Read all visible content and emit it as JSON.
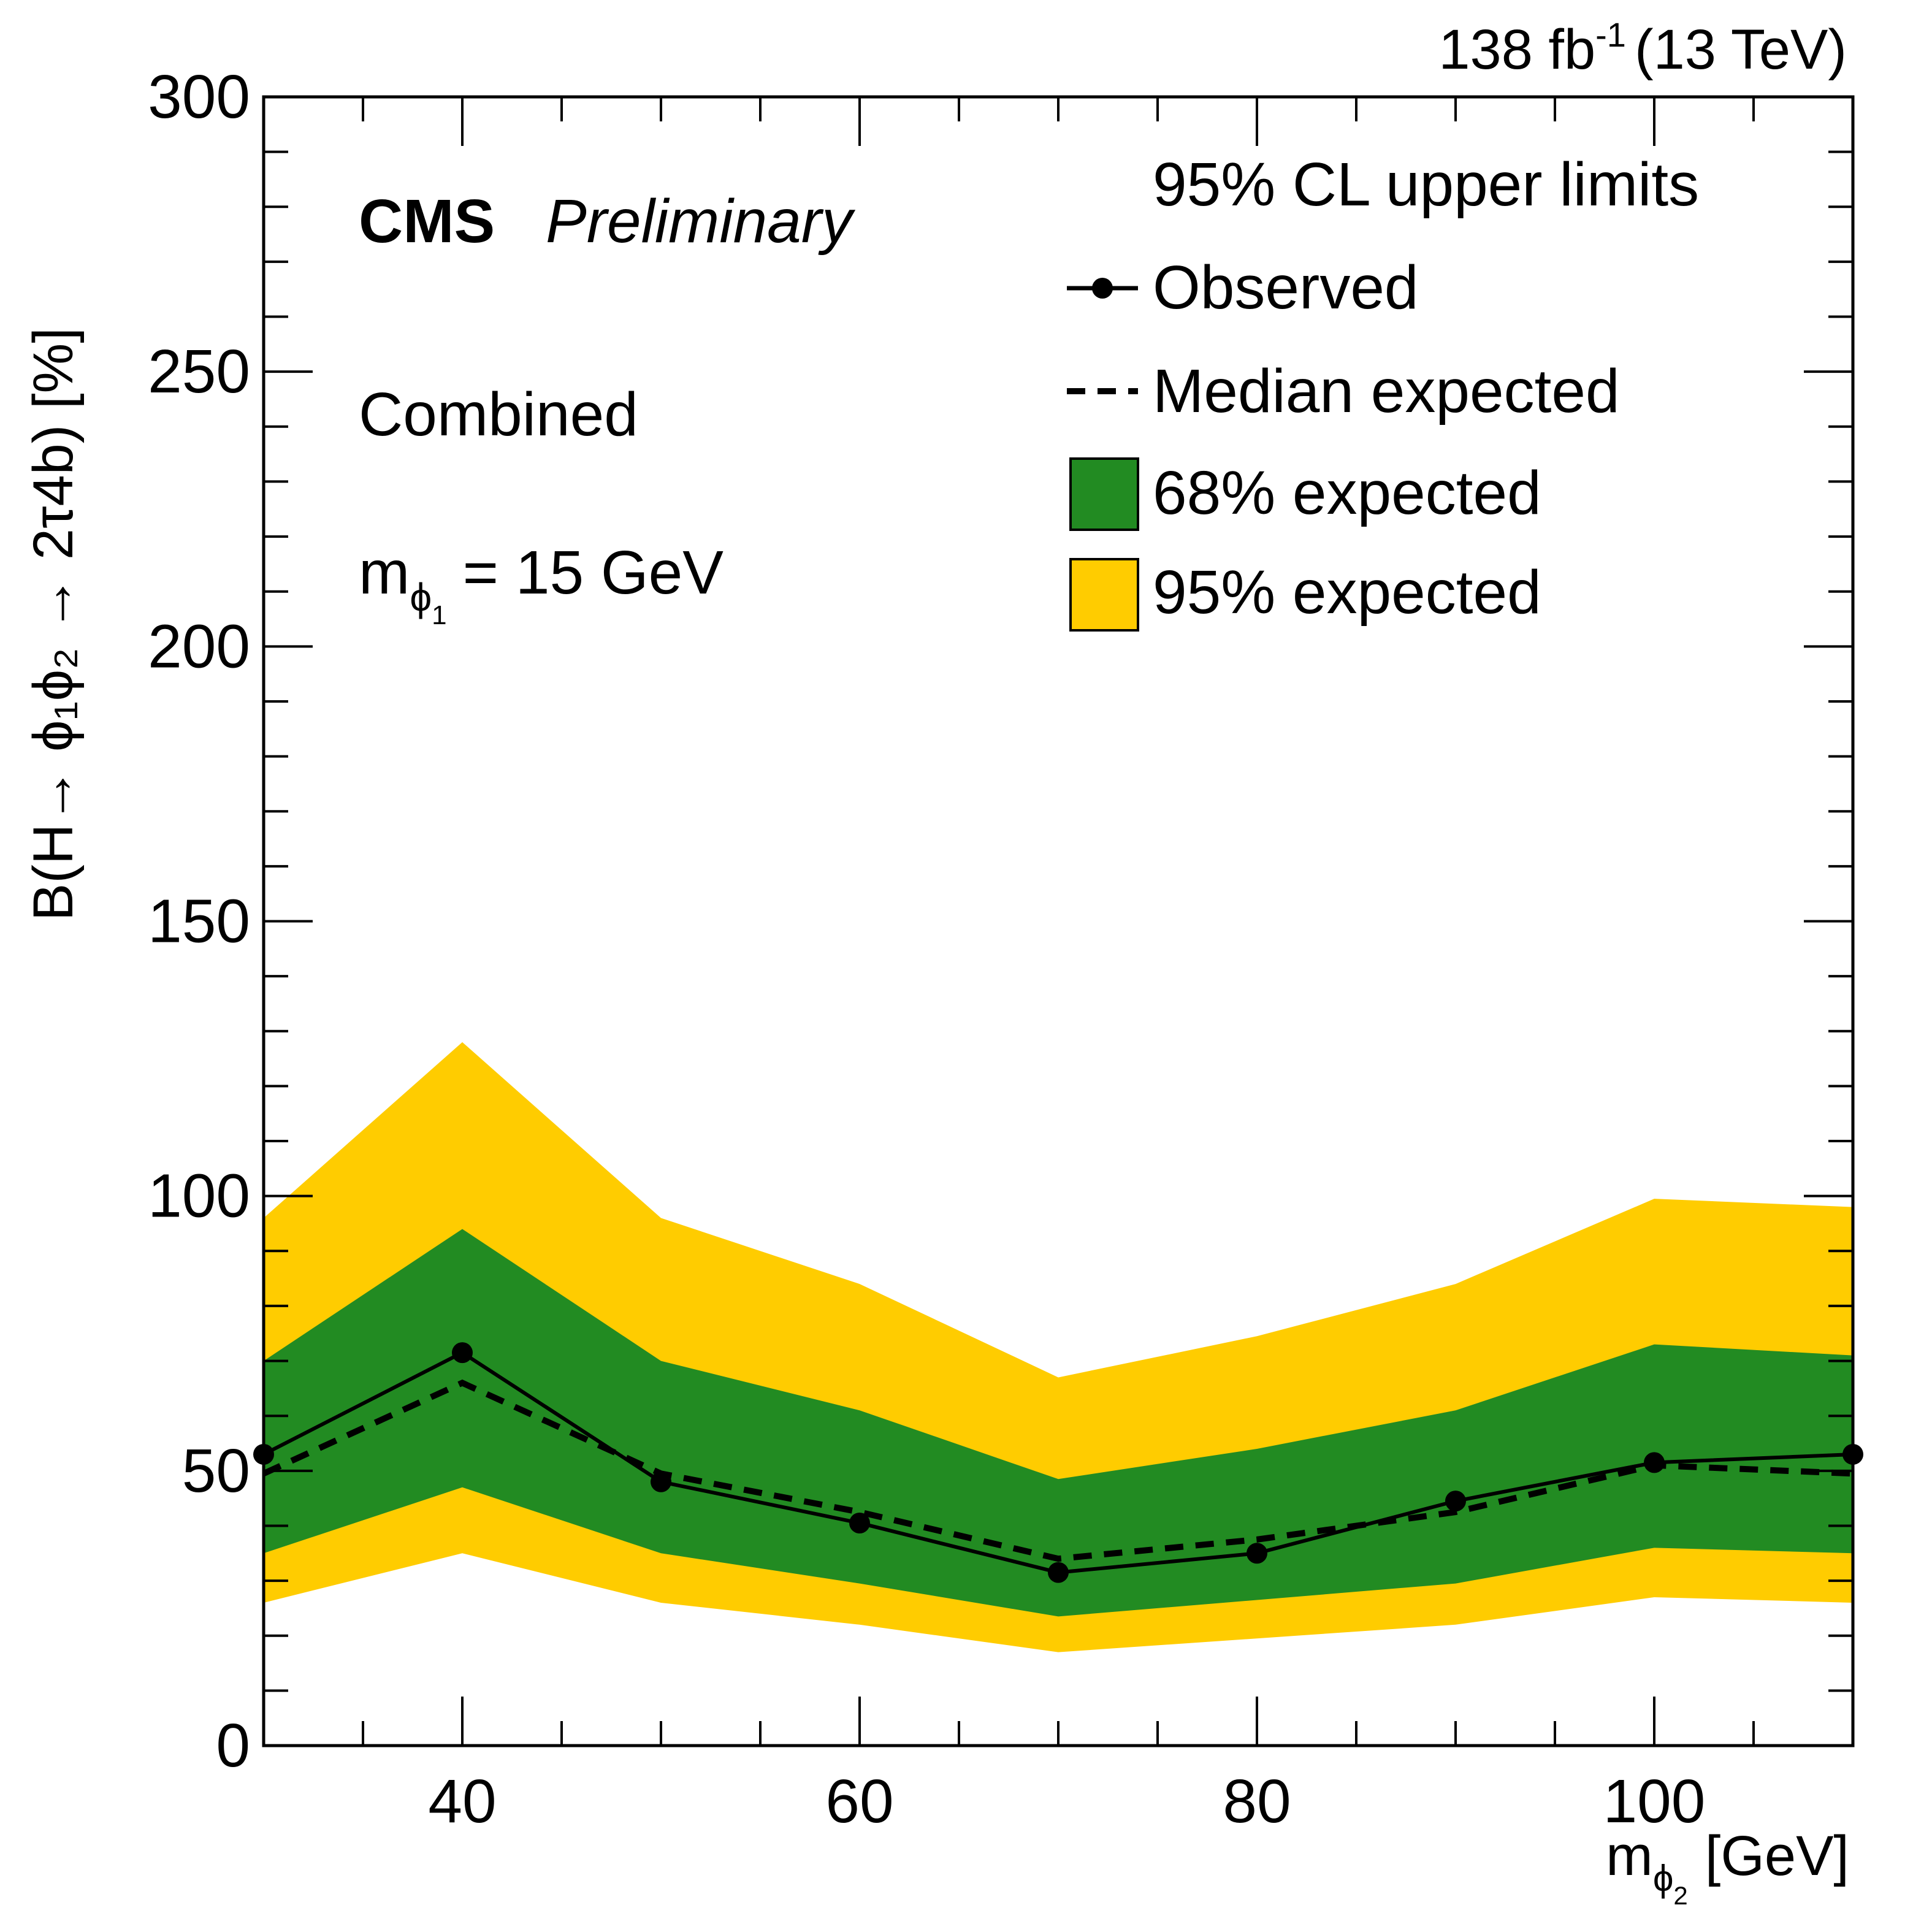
{
  "chart_data": {
    "type": "line",
    "title": "",
    "lumi_label": "138 fb",
    "lumi_exponent": "-1",
    "energy_label": "(13 TeV)",
    "experiment": "CMS",
    "status": "Preliminary",
    "channel": "Combined",
    "mass_point": {
      "prefix": "m",
      "sub": "ϕ",
      "subsub": "1",
      "rest": "= 15 GeV"
    },
    "xlabel": {
      "prefix": "m",
      "sub": "ϕ",
      "subsub": "2",
      "rest": "[GeV]"
    },
    "ylabel": "B(H→ ϕ₁ϕ₂ → 2τ4b) [%]",
    "xlim": [
      30,
      110
    ],
    "ylim": [
      0,
      300
    ],
    "x_major_ticks": [
      40,
      60,
      80,
      100
    ],
    "x_minor_step": 5,
    "y_major_ticks": [
      0,
      50,
      100,
      150,
      200,
      250,
      300
    ],
    "y_minor_step": 10,
    "x": [
      30,
      40,
      50,
      60,
      70,
      80,
      90,
      100,
      110
    ],
    "series": [
      {
        "name": "95% expected",
        "kind": "band",
        "color": "#ffcc00",
        "low": [
          26,
          35,
          26,
          22,
          17,
          19.5,
          22,
          27,
          26
        ],
        "high": [
          96,
          128,
          96,
          84,
          67,
          74.5,
          84,
          99.5,
          98
        ]
      },
      {
        "name": "68% expected",
        "kind": "band",
        "color": "#228b22",
        "low": [
          35,
          47,
          35,
          29.5,
          23.5,
          26.5,
          29.5,
          36,
          35
        ],
        "high": [
          70,
          94,
          70,
          61,
          48.5,
          54,
          61,
          73,
          71
        ]
      },
      {
        "name": "Median expected",
        "kind": "dashed",
        "color": "#000000",
        "values": [
          49.5,
          66,
          49.5,
          42.5,
          34,
          37.5,
          42.5,
          51,
          49.5
        ]
      },
      {
        "name": "Observed",
        "kind": "solid-markers",
        "color": "#000000",
        "values": [
          53,
          71.5,
          48,
          40.5,
          31.5,
          35,
          44.5,
          51.5,
          53
        ]
      }
    ],
    "legend": {
      "header": "95% CL upper limits",
      "entries": [
        "Observed",
        "Median expected",
        "68% expected",
        "95% expected"
      ],
      "placement": "top-right"
    }
  }
}
